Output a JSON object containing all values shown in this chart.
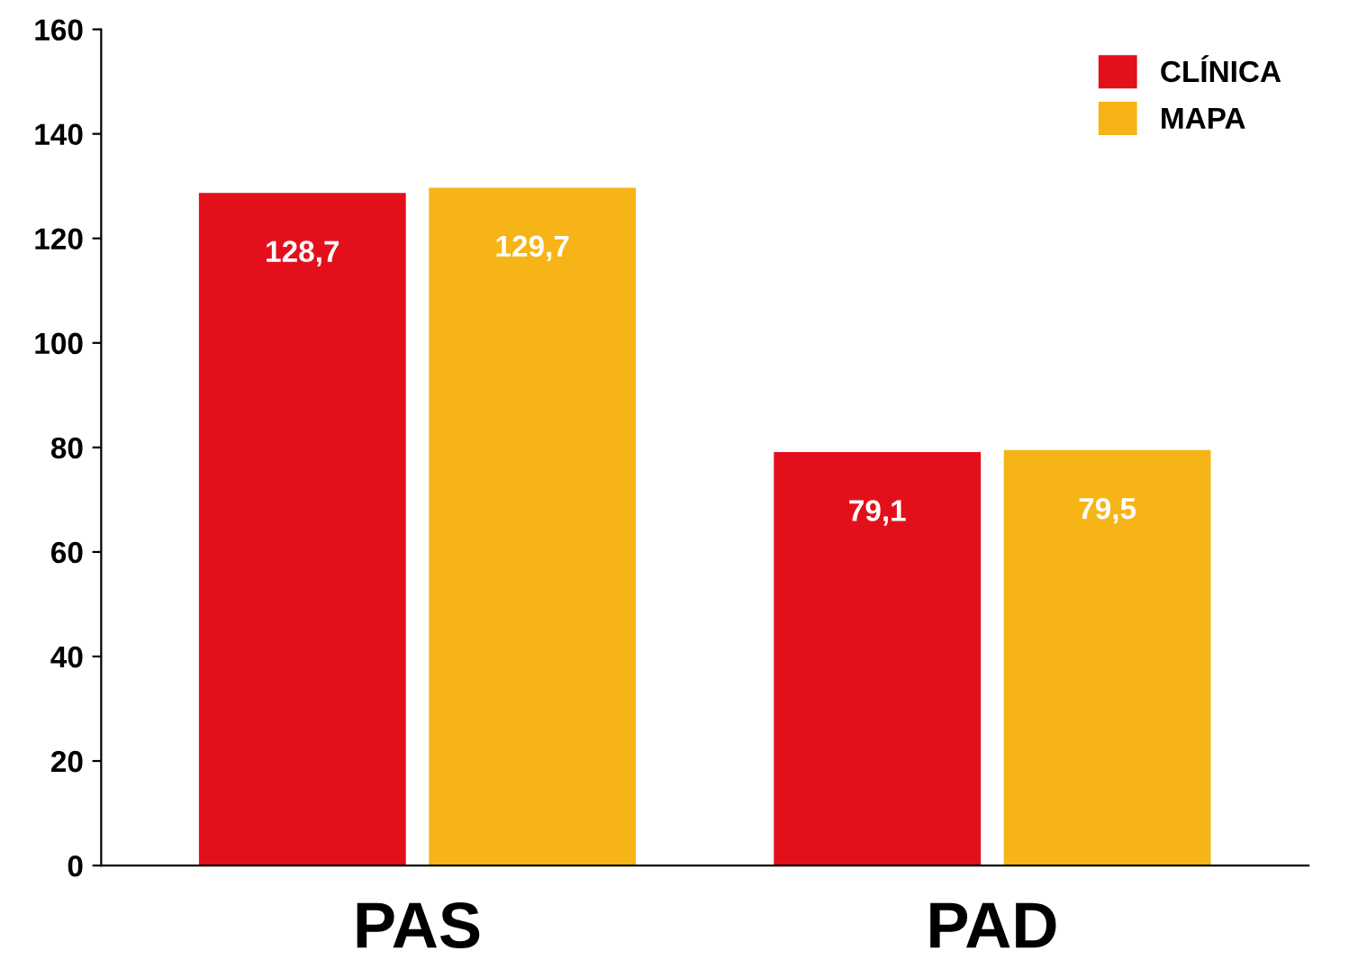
{
  "chart_data": {
    "type": "bar",
    "categories": [
      "PAS",
      "PAD"
    ],
    "series": [
      {
        "name": "CLÍNICA",
        "color": "#e3101b",
        "values": [
          128.7,
          79.1
        ],
        "value_labels": [
          "128,7",
          "79,1"
        ]
      },
      {
        "name": "MAPA",
        "color": "#f6b416",
        "values": [
          129.7,
          79.5
        ],
        "value_labels": [
          "129,7",
          "79,5"
        ]
      }
    ],
    "ylim": [
      0,
      160
    ],
    "yticks": [
      0,
      20,
      40,
      60,
      80,
      100,
      120,
      140,
      160
    ],
    "grid": false,
    "legend": "top right"
  }
}
